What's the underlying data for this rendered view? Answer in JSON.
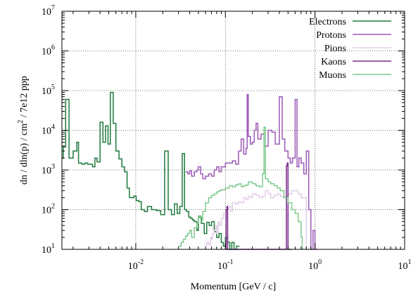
{
  "chart_data": {
    "type": "line",
    "step": true,
    "xscale": "log",
    "yscale": "log",
    "xlim": [
      0.0015,
      10
    ],
    "ylim": [
      10,
      10000000
    ],
    "xlabel": "Momentum [GeV / c]",
    "ylabel": "dn / dln(p) / cm² / 7e12 ppp",
    "ylabel_parts": {
      "before": "dn / dln(p) / cm",
      "sup": "2",
      "after": " / 7e12 ppp"
    },
    "grid": true,
    "legend_position": "top-right",
    "x_ticks": [
      {
        "value": 0.01,
        "base": "10",
        "exp": "-2"
      },
      {
        "value": 0.1,
        "base": "10",
        "exp": "-1"
      },
      {
        "value": 1,
        "base": "10",
        "exp": "0"
      },
      {
        "value": 10,
        "base": "10",
        "exp": "1"
      }
    ],
    "y_ticks": [
      {
        "value": 10,
        "base": "10",
        "exp": "1"
      },
      {
        "value": 100,
        "base": "10",
        "exp": "2"
      },
      {
        "value": 1000,
        "base": "10",
        "exp": "3"
      },
      {
        "value": 10000,
        "base": "10",
        "exp": "4"
      },
      {
        "value": 100000,
        "base": "10",
        "exp": "5"
      },
      {
        "value": 1000000,
        "base": "10",
        "exp": "6"
      },
      {
        "value": 10000000,
        "base": "10",
        "exp": "7"
      }
    ],
    "series": [
      {
        "name": "Electrons",
        "color": "#1e7a3c",
        "x": [
          0.0015,
          0.00155,
          0.00165,
          0.0018,
          0.0019,
          0.002,
          0.0022,
          0.0023,
          0.0025,
          0.0027,
          0.0029,
          0.0031,
          0.0033,
          0.0035,
          0.0037,
          0.004,
          0.0043,
          0.0046,
          0.0049,
          0.0052,
          0.0056,
          0.006,
          0.0065,
          0.007,
          0.0075,
          0.008,
          0.0085,
          0.009,
          0.0095,
          0.0101,
          0.0108,
          0.0115,
          0.0125,
          0.0135,
          0.015,
          0.017,
          0.019,
          0.021,
          0.023,
          0.025,
          0.027,
          0.029,
          0.031,
          0.033,
          0.035,
          0.037,
          0.039,
          0.041,
          0.043,
          0.045,
          0.048,
          0.05,
          0.054,
          0.058,
          0.062,
          0.066,
          0.07,
          0.075,
          0.08,
          0.085,
          0.09,
          0.095,
          0.1,
          0.106,
          0.112,
          0.118,
          0.125,
          0.133
        ],
        "y": [
          2000,
          3800,
          60000,
          2000,
          2000,
          3000,
          5000,
          1500,
          1400,
          1500,
          1400,
          1400,
          1200,
          2000,
          1600,
          16000,
          5000,
          13000,
          4500,
          90000,
          15000,
          3000,
          1900,
          1200,
          900,
          350,
          200,
          200,
          220,
          170,
          160,
          100,
          90,
          120,
          100,
          95,
          75,
          3000,
          100,
          75,
          140,
          80,
          120,
          2600,
          100,
          90,
          65,
          60,
          55,
          50,
          30,
          65,
          45,
          25,
          48,
          40,
          50,
          28,
          20,
          25,
          15,
          12,
          20,
          15,
          10,
          15,
          10,
          12
        ]
      },
      {
        "name": "Protons",
        "color": "#9b59b6",
        "x": [
          0.036,
          0.038,
          0.04,
          0.042,
          0.045,
          0.048,
          0.05,
          0.053,
          0.056,
          0.06,
          0.065,
          0.07,
          0.075,
          0.08,
          0.085,
          0.09,
          0.1,
          0.11,
          0.12,
          0.13,
          0.14,
          0.15,
          0.16,
          0.17,
          0.175,
          0.18,
          0.19,
          0.2,
          0.21,
          0.22,
          0.23,
          0.25,
          0.27,
          0.3,
          0.33,
          0.36,
          0.4,
          0.43,
          0.46,
          0.5,
          0.53,
          0.56,
          0.6,
          0.63,
          0.66,
          0.7,
          0.75,
          0.8,
          0.85,
          0.9,
          0.95,
          1.0
        ],
        "y": [
          900,
          800,
          950,
          700,
          900,
          1000,
          1200,
          800,
          600,
          700,
          800,
          700,
          1000,
          1200,
          900,
          1200,
          1500,
          1500,
          1700,
          1400,
          3000,
          6000,
          2500,
          3500,
          80000,
          7000,
          4500,
          5000,
          10000,
          15000,
          6000,
          8000,
          4000,
          10000,
          9000,
          4500,
          70000,
          6000,
          3000,
          2000,
          1500,
          2000,
          60000,
          1200,
          2000,
          1500,
          800,
          3000,
          100,
          10,
          30,
          10
        ]
      },
      {
        "name": "Pions",
        "color": "#e3cce8",
        "x": [
          0.06,
          0.062,
          0.065,
          0.068,
          0.07,
          0.072,
          0.075,
          0.078,
          0.08,
          0.083,
          0.086,
          0.09,
          0.095,
          0.1,
          0.105,
          0.11,
          0.115,
          0.12,
          0.13,
          0.14,
          0.15,
          0.16,
          0.17,
          0.18,
          0.19,
          0.2,
          0.22,
          0.24,
          0.26,
          0.28,
          0.3,
          0.32,
          0.35,
          0.38,
          0.41,
          0.44,
          0.47,
          0.5,
          0.55,
          0.6,
          0.65,
          0.7,
          0.8
        ],
        "y": [
          12,
          15,
          13,
          20,
          18,
          25,
          30,
          40,
          25,
          50,
          40,
          60,
          80,
          60,
          100,
          120,
          90,
          150,
          140,
          160,
          150,
          200,
          180,
          220,
          200,
          250,
          230,
          200,
          220,
          300,
          250,
          200,
          230,
          250,
          220,
          200,
          220,
          250,
          300,
          300,
          250,
          200,
          10
        ]
      },
      {
        "name": "Kaons",
        "color": "#7b2a8c",
        "x": [
          0.1,
          0.102,
          0.104,
          0.106,
          0.47,
          0.48,
          0.49,
          0.5,
          0.51
        ],
        "y": [
          10,
          100,
          120,
          10,
          10,
          1300,
          1500,
          10,
          10
        ]
      },
      {
        "name": "Muons",
        "color": "#7dc98d",
        "x": [
          0.03,
          0.032,
          0.034,
          0.036,
          0.038,
          0.04,
          0.042,
          0.045,
          0.048,
          0.05,
          0.053,
          0.056,
          0.06,
          0.065,
          0.07,
          0.075,
          0.08,
          0.085,
          0.09,
          0.1,
          0.11,
          0.12,
          0.13,
          0.14,
          0.15,
          0.16,
          0.17,
          0.18,
          0.2,
          0.22,
          0.24,
          0.26,
          0.27,
          0.28,
          0.3,
          0.32,
          0.35,
          0.38,
          0.41,
          0.45,
          0.5,
          0.55,
          0.6,
          0.65,
          0.7,
          0.72
        ],
        "y": [
          12,
          15,
          18,
          22,
          25,
          30,
          20,
          35,
          45,
          70,
          55,
          90,
          150,
          200,
          230,
          250,
          280,
          300,
          320,
          350,
          400,
          380,
          420,
          450,
          380,
          400,
          420,
          500,
          450,
          400,
          380,
          800,
          12000,
          600,
          500,
          450,
          400,
          350,
          300,
          200,
          150,
          100,
          80,
          50,
          20,
          10
        ]
      }
    ]
  }
}
